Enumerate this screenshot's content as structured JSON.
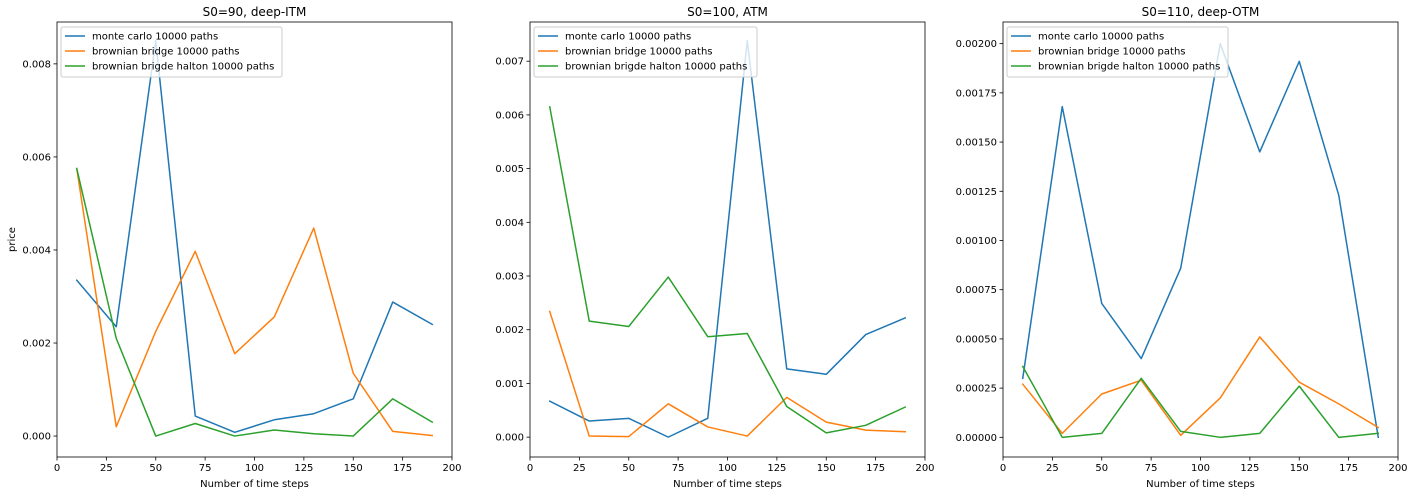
{
  "chart_data": [
    {
      "type": "line",
      "title": "S0=90, deep-ITM",
      "xlabel": "Number of time steps",
      "ylabel": "price",
      "xlim": [
        0,
        200
      ],
      "ylim": [
        -0.00045,
        0.0089
      ],
      "xticks": [
        0,
        25,
        50,
        75,
        100,
        125,
        150,
        175,
        200
      ],
      "xtick_labels": [
        "0",
        "25",
        "50",
        "75",
        "100",
        "125",
        "150",
        "175",
        "200"
      ],
      "yticks": [
        0,
        0.002,
        0.004,
        0.006,
        0.008
      ],
      "ytick_labels": [
        "0.000",
        "0.002",
        "0.004",
        "0.006",
        "0.008"
      ],
      "grid": false,
      "legend_position": "upper-left",
      "x": [
        10,
        30,
        50,
        70,
        90,
        110,
        130,
        150,
        170,
        190
      ],
      "series": [
        {
          "name": "monte carlo 10000 paths",
          "color": "#1f77b4",
          "values": [
            0.00335,
            0.00235,
            0.0085,
            0.00043,
            8e-05,
            0.00035,
            0.00048,
            0.0008,
            0.00288,
            0.0024
          ]
        },
        {
          "name": "brownian bridge 10000 paths",
          "color": "#ff7f0e",
          "values": [
            0.00575,
            0.0002,
            0.00225,
            0.00397,
            0.00177,
            0.00256,
            0.00447,
            0.00135,
            0.0001,
            1e-05
          ]
        },
        {
          "name": "brownian brigde halton 10000 paths",
          "color": "#2ca02c",
          "values": [
            0.00575,
            0.0021,
            0.0,
            0.00027,
            0.0,
            0.00013,
            5e-05,
            0.0,
            0.0008,
            0.0003
          ]
        }
      ]
    },
    {
      "type": "line",
      "title": "S0=100, ATM",
      "xlabel": "Number of time steps",
      "ylabel": "",
      "xlim": [
        0,
        200
      ],
      "ylim": [
        -0.00037,
        0.00773
      ],
      "xticks": [
        0,
        25,
        50,
        75,
        100,
        125,
        150,
        175,
        200
      ],
      "xtick_labels": [
        "0",
        "25",
        "50",
        "75",
        "100",
        "125",
        "150",
        "175",
        "200"
      ],
      "yticks": [
        0,
        0.001,
        0.002,
        0.003,
        0.004,
        0.005,
        0.006,
        0.007
      ],
      "ytick_labels": [
        "0.000",
        "0.001",
        "0.002",
        "0.003",
        "0.004",
        "0.005",
        "0.006",
        "0.007"
      ],
      "grid": false,
      "legend_position": "upper-left",
      "x": [
        10,
        30,
        50,
        70,
        90,
        110,
        130,
        150,
        170,
        190
      ],
      "series": [
        {
          "name": "monte carlo 10000 paths",
          "color": "#1f77b4",
          "values": [
            0.00067,
            0.0003,
            0.00035,
            0.0,
            0.00035,
            0.00738,
            0.00127,
            0.00117,
            0.00191,
            0.00222
          ]
        },
        {
          "name": "brownian bridge 10000 paths",
          "color": "#ff7f0e",
          "values": [
            0.00234,
            2e-05,
            1e-05,
            0.00062,
            0.00019,
            2e-05,
            0.00074,
            0.00028,
            0.00013,
            0.0001
          ]
        },
        {
          "name": "brownian brigde halton 10000 paths",
          "color": "#2ca02c",
          "values": [
            0.00615,
            0.00216,
            0.00206,
            0.00298,
            0.00187,
            0.00193,
            0.00057,
            8e-05,
            0.00022,
            0.00056
          ]
        }
      ]
    },
    {
      "type": "line",
      "title": "S0=110, deep-OTM",
      "xlabel": "Number of time steps",
      "ylabel": "",
      "xlim": [
        0,
        200
      ],
      "ylim": [
        -0.0001,
        0.00211
      ],
      "xticks": [
        0,
        25,
        50,
        75,
        100,
        125,
        150,
        175,
        200
      ],
      "xtick_labels": [
        "0",
        "25",
        "50",
        "75",
        "100",
        "125",
        "150",
        "175",
        "200"
      ],
      "yticks": [
        0,
        0.00025,
        0.0005,
        0.00075,
        0.001,
        0.00125,
        0.0015,
        0.00175,
        0.002
      ],
      "ytick_labels": [
        "0.00000",
        "0.00025",
        "0.00050",
        "0.00075",
        "0.00100",
        "0.00125",
        "0.00150",
        "0.00175",
        "0.00200"
      ],
      "grid": false,
      "legend_position": "upper-left",
      "x": [
        10,
        30,
        50,
        70,
        90,
        110,
        130,
        150,
        170,
        190
      ],
      "series": [
        {
          "name": "monte carlo 10000 paths",
          "color": "#1f77b4",
          "values": [
            0.0003,
            0.00168,
            0.00068,
            0.0004,
            0.00086,
            0.002,
            0.00145,
            0.00191,
            0.00123,
            0.0
          ]
        },
        {
          "name": "brownian bridge 10000 paths",
          "color": "#ff7f0e",
          "values": [
            0.00027,
            2e-05,
            0.00022,
            0.00029,
            1e-05,
            0.0002,
            0.00051,
            0.00028,
            0.00017,
            5e-05
          ]
        },
        {
          "name": "brownian brigde halton 10000 paths",
          "color": "#2ca02c",
          "values": [
            0.00036,
            0.0,
            2e-05,
            0.0003,
            3e-05,
            0.0,
            2e-05,
            0.00026,
            0.0,
            2e-05
          ]
        }
      ]
    }
  ]
}
